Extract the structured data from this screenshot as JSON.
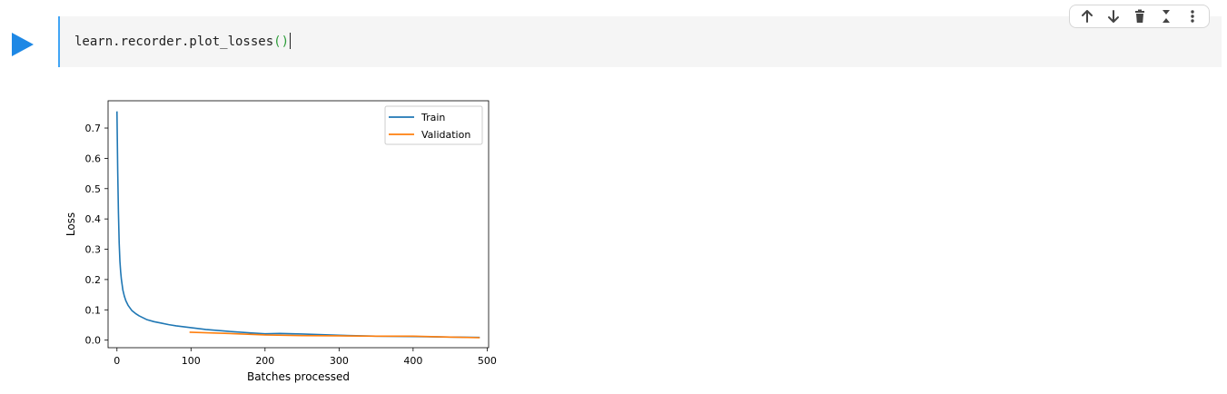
{
  "cell": {
    "code_before": "learn.recorder.plot_losses",
    "code_parens": "()"
  },
  "toolbar": {
    "move_up": "arrow-up-icon",
    "move_down": "arrow-down-icon",
    "delete": "trash-icon",
    "collapse": "collapse-icon",
    "more": "more-vertical-icon"
  },
  "colors": {
    "accent": "#42a5f5",
    "run": "#1e88e5",
    "train": "#1f77b4",
    "validation": "#ff7f0e"
  },
  "chart_data": {
    "type": "line",
    "title": "",
    "xlabel": "Batches processed",
    "ylabel": "Loss",
    "xlim": [
      -12,
      502
    ],
    "ylim": [
      -0.025,
      0.79
    ],
    "xticks": [
      0,
      100,
      200,
      300,
      400,
      500
    ],
    "yticks": [
      0.0,
      0.1,
      0.2,
      0.3,
      0.4,
      0.5,
      0.6,
      0.7
    ],
    "legend_position": "top-right",
    "grid": false,
    "series": [
      {
        "name": "Train",
        "color": "#1f77b4",
        "x": [
          0,
          1,
          2,
          3,
          4,
          5,
          6,
          8,
          10,
          12,
          15,
          20,
          25,
          30,
          40,
          50,
          60,
          70,
          80,
          100,
          120,
          150,
          180,
          200,
          220,
          250,
          300,
          350,
          400,
          450,
          490
        ],
        "y": [
          0.755,
          0.56,
          0.42,
          0.32,
          0.26,
          0.225,
          0.2,
          0.165,
          0.145,
          0.13,
          0.115,
          0.098,
          0.088,
          0.08,
          0.068,
          0.061,
          0.056,
          0.051,
          0.047,
          0.041,
          0.035,
          0.029,
          0.024,
          0.021,
          0.022,
          0.02,
          0.016,
          0.013,
          0.012,
          0.01,
          0.009
        ]
      },
      {
        "name": "Validation",
        "color": "#ff7f0e",
        "x": [
          98,
          150,
          200,
          250,
          300,
          350,
          400,
          450,
          490
        ],
        "y": [
          0.026,
          0.022,
          0.017,
          0.015,
          0.014,
          0.013,
          0.013,
          0.01,
          0.008
        ]
      }
    ]
  }
}
